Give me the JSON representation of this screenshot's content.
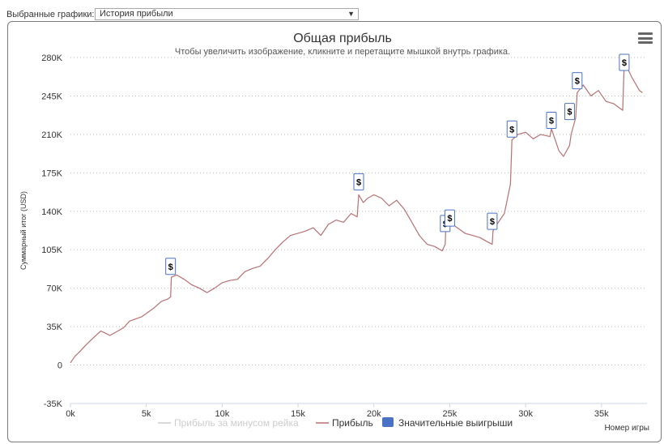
{
  "selector": {
    "label": "Выбранные графики:",
    "value": "История прибыли",
    "arrow": "▼"
  },
  "chart_data": {
    "type": "line",
    "title": "Общая прибыль",
    "subtitle": "Чтобы увеличить изображение, кликните и перетащите мышкой внутрь графика.",
    "xlabel": "Номер игры",
    "ylabel": "Суммарный итог (USD)",
    "xlim": [
      0,
      38000
    ],
    "ylim": [
      -35000,
      280000
    ],
    "x_ticks": [
      0,
      5000,
      10000,
      15000,
      20000,
      25000,
      30000,
      35000
    ],
    "x_tick_labels": [
      "0k",
      "5k",
      "10k",
      "15k",
      "20k",
      "25k",
      "30k",
      "35k"
    ],
    "y_ticks": [
      -35000,
      0,
      35000,
      70000,
      105000,
      140000,
      175000,
      210000,
      245000,
      280000
    ],
    "y_tick_labels": [
      "-35K",
      "0",
      "35K",
      "70K",
      "105K",
      "140K",
      "175K",
      "210K",
      "245K",
      "280K"
    ],
    "grid": true,
    "legend_position": "bottom",
    "series": [
      {
        "name": "Прибыль за минусом рейка",
        "color": "#d0d0d0",
        "hidden": true,
        "x": [],
        "y": []
      },
      {
        "name": "Прибыль",
        "color": "#b87070",
        "x": [
          0,
          300,
          600,
          1000,
          1300,
          1600,
          2000,
          2300,
          2600,
          3000,
          3500,
          3900,
          4300,
          4700,
          5100,
          5500,
          6000,
          6400,
          6600,
          6650,
          7000,
          7500,
          8000,
          8500,
          9000,
          9500,
          10000,
          10500,
          11000,
          11500,
          12000,
          12500,
          13000,
          13500,
          14000,
          14500,
          15000,
          15500,
          16000,
          16500,
          17000,
          17500,
          18000,
          18500,
          18900,
          19000,
          19300,
          19600,
          20000,
          20500,
          21000,
          21500,
          22000,
          22500,
          23000,
          23500,
          24000,
          24500,
          24700,
          24750,
          25000,
          25500,
          26000,
          26500,
          27000,
          27500,
          27800,
          27850,
          28200,
          28600,
          29000,
          29100,
          29500,
          30000,
          30500,
          31000,
          31600,
          31700,
          32200,
          32500,
          32900,
          33000,
          33300,
          33400,
          33800,
          34300,
          34800,
          35300,
          35800,
          36400,
          36500,
          37000,
          37500,
          37700
        ],
        "y": [
          2000,
          8000,
          12000,
          18000,
          22000,
          26000,
          31000,
          29000,
          27000,
          30000,
          34000,
          40000,
          42000,
          44000,
          48000,
          52000,
          58000,
          60000,
          62000,
          80000,
          82000,
          78000,
          73000,
          70000,
          66000,
          70000,
          75000,
          77000,
          78000,
          85000,
          88000,
          90000,
          97000,
          105000,
          112000,
          118000,
          120000,
          122000,
          125000,
          118000,
          128000,
          132000,
          130000,
          138000,
          135000,
          155000,
          148000,
          152000,
          155000,
          152000,
          145000,
          150000,
          142000,
          130000,
          118000,
          110000,
          108000,
          104000,
          110000,
          128000,
          130000,
          125000,
          120000,
          118000,
          116000,
          112000,
          110000,
          122000,
          130000,
          138000,
          165000,
          205000,
          210000,
          212000,
          206000,
          210000,
          208000,
          215000,
          195000,
          190000,
          200000,
          210000,
          225000,
          248000,
          255000,
          245000,
          250000,
          240000,
          238000,
          232000,
          276000,
          262000,
          250000,
          248000
        ]
      },
      {
        "name": "Значительные выигрыши",
        "color": "#4a72c4",
        "marker": "$",
        "x": [
          6600,
          19000,
          24700,
          25000,
          27800,
          29100,
          31700,
          32900,
          33400,
          36500
        ],
        "y": [
          81000,
          158000,
          120000,
          125000,
          122000,
          206000,
          214000,
          222000,
          250000,
          276000
        ]
      }
    ]
  }
}
